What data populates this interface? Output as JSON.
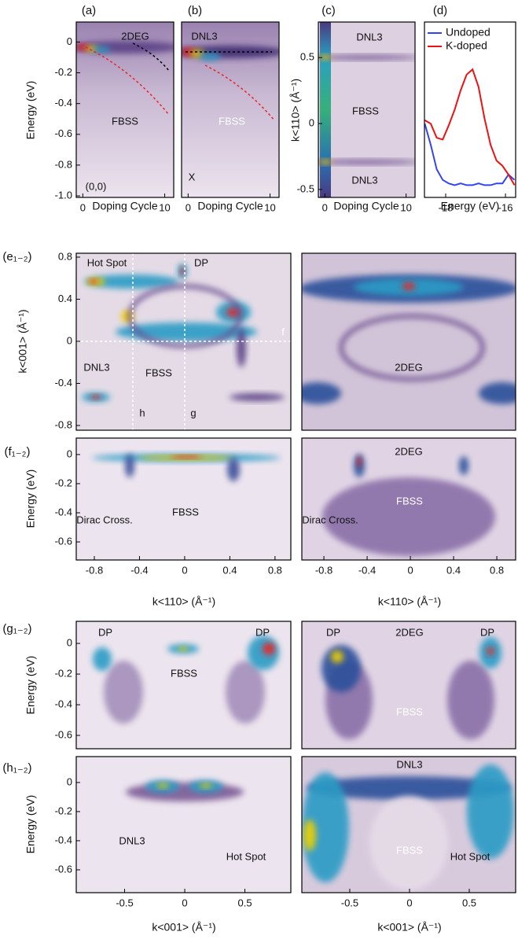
{
  "chart_data": [
    {
      "type": "image",
      "label": "(a)",
      "xlabel": "Doping Cycle",
      "ylabel": "Energy (eV)",
      "xlim": [
        -0.8,
        11.1
      ],
      "ylim": [
        -1.01,
        0.13
      ],
      "xticks": [
        0,
        10
      ],
      "yticks": [
        0,
        -0.2,
        -0.4,
        -0.6,
        -0.8,
        {
          "value": -1,
          "label": "-1.0"
        }
      ],
      "annotations": [
        "2DEG",
        "FBSS",
        "(0,0)"
      ]
    },
    {
      "type": "image",
      "label": "(b)",
      "xlabel": "Doping Cycle",
      "xlim": [
        -0.8,
        11.1
      ],
      "ylim": [
        -1.01,
        0.13
      ],
      "xticks": [
        0,
        10
      ],
      "annotations": [
        "DNL3",
        "FBSS",
        "X"
      ]
    },
    {
      "type": "image",
      "label": "(c)",
      "xlabel": "Doping Cycle",
      "ylabel": "k<110> (Å⁻¹)",
      "xlim": [
        -0.8,
        11.1
      ],
      "ylim": [
        -0.56,
        0.77
      ],
      "xticks": [
        0,
        10
      ],
      "yticks": [
        0.5,
        0,
        -0.5
      ],
      "annotations": [
        "DNL3",
        "FBSS",
        "DNL3"
      ]
    },
    {
      "type": "line",
      "label": "(d)",
      "xlabel": "Energy (eV)",
      "xlim": [
        -18.71,
        -15.66
      ],
      "ylim": [
        0,
        1
      ],
      "xticks": [
        -18,
        -16
      ],
      "x": [
        -18.7,
        -18.5,
        -18.3,
        -18.1,
        -17.9,
        -17.7,
        -17.5,
        -17.3,
        -17.1,
        -16.9,
        -16.7,
        -16.5,
        -16.3,
        -16.1,
        -15.9,
        -15.7
      ],
      "series": [
        {
          "name": "Undoped",
          "color": "#3344ee",
          "values": [
            0.42,
            0.3,
            0.16,
            0.1,
            0.08,
            0.07,
            0.08,
            0.07,
            0.07,
            0.08,
            0.07,
            0.07,
            0.08,
            0.08,
            0.13,
            0.1
          ]
        },
        {
          "name": "K-doped",
          "color": "#ee1111",
          "values": [
            0.44,
            0.42,
            0.34,
            0.33,
            0.41,
            0.5,
            0.61,
            0.7,
            0.73,
            0.63,
            0.45,
            0.3,
            0.21,
            0.18,
            0.13,
            0.07
          ]
        }
      ]
    },
    {
      "type": "image",
      "label": "(e₁₋₂)",
      "ylabel": "k<001> (Å⁻¹)",
      "xlim": [
        -0.96,
        0.94
      ],
      "ylim": [
        -0.845,
        0.837
      ],
      "yticks": [
        0.8,
        0.4,
        0,
        -0.4,
        -0.8
      ],
      "annotations": [
        "Hot Spot",
        "DP",
        "f",
        "DNL3",
        "FBSS",
        "h",
        "g"
      ]
    },
    {
      "type": "image",
      "annotations": [
        "2DEG"
      ]
    },
    {
      "type": "image",
      "label": "(f₁₋₂)",
      "xlabel": "k<110> (Å⁻¹)",
      "ylabel": "Energy (eV)",
      "xlim": [
        -0.96,
        0.94
      ],
      "ylim": [
        -0.724,
        0.113
      ],
      "xticks": [
        -0.8,
        -0.4,
        0,
        0.4,
        0.8
      ],
      "yticks": [
        0,
        -0.2,
        -0.4,
        -0.6
      ],
      "annotations": [
        "Dirac Cross.",
        "FBSS"
      ]
    },
    {
      "type": "image",
      "xlabel": "k<110> (Å⁻¹)",
      "xlim": [
        -1.004,
        0.974
      ],
      "ylim": [
        -0.724,
        0.113
      ],
      "xticks": [
        -0.8,
        -0.4,
        0,
        0.4,
        0.8
      ],
      "annotations": [
        "2DEG",
        "Dirac Cross.",
        "FBSS"
      ]
    },
    {
      "type": "image",
      "label": "(g₁₋₂)",
      "ylabel": "Energy (eV)",
      "ylim": [
        -0.687,
        0.144
      ],
      "yticks": [
        0,
        -0.2,
        -0.4,
        -0.6
      ],
      "annotations": [
        "DP",
        "FBSS",
        "DP"
      ]
    },
    {
      "type": "image",
      "annotations": [
        "DP",
        "2DEG",
        "DP",
        "FBSS"
      ]
    },
    {
      "type": "image",
      "label": "(h₁₋₂)",
      "xlabel": "k<001> (Å⁻¹)",
      "ylabel": "Energy (eV)",
      "xlim": [
        -0.902,
        0.882
      ],
      "ylim": [
        -0.757,
        0.178
      ],
      "xticks": [
        -0.5,
        0,
        0.5
      ],
      "yticks": [
        0,
        -0.2,
        -0.4,
        -0.6
      ],
      "annotations": [
        "DNL3",
        "Hot Spot"
      ]
    },
    {
      "type": "image",
      "xlabel": "k<001> (Å⁻¹)",
      "xlim": [
        -0.901,
        0.888
      ],
      "ylim": [
        -0.757,
        0.178
      ],
      "xticks": [
        -0.5,
        0,
        0.5
      ],
      "annotations": [
        "DNL3",
        "FBSS",
        "Hot Spot"
      ]
    }
  ]
}
